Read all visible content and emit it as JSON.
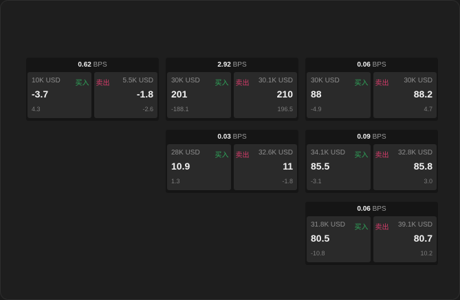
{
  "labels": {
    "unit": "BPS",
    "buy": "买入",
    "sell": "卖出"
  },
  "colors": {
    "buy": "#2fa55a",
    "sell": "#d43c6a"
  },
  "widgets": [
    {
      "spread": "0.62",
      "buy": {
        "qty": "10K USD",
        "price": "-3.7",
        "change": "4.3"
      },
      "sell": {
        "qty": "5.5K USD",
        "price": "-1.8",
        "change": "-2.6"
      }
    },
    {
      "spread": "2.92",
      "buy": {
        "qty": "30K USD",
        "price": "201",
        "change": "-188.1"
      },
      "sell": {
        "qty": "30.1K USD",
        "price": "210",
        "change": "196.5"
      }
    },
    {
      "spread": "0.06",
      "buy": {
        "qty": "30K USD",
        "price": "88",
        "change": "-4.9"
      },
      "sell": {
        "qty": "30K USD",
        "price": "88.2",
        "change": "4.7"
      }
    },
    {
      "spread": "0.03",
      "buy": {
        "qty": "28K USD",
        "price": "10.9",
        "change": "1.3"
      },
      "sell": {
        "qty": "32.6K USD",
        "price": "11",
        "change": "-1.8"
      }
    },
    {
      "spread": "0.09",
      "buy": {
        "qty": "34.1K USD",
        "price": "85.5",
        "change": "-3.1"
      },
      "sell": {
        "qty": "32.8K USD",
        "price": "85.8",
        "change": "3.0"
      }
    },
    {
      "spread": "0.06",
      "buy": {
        "qty": "31.8K USD",
        "price": "80.5",
        "change": "-10.8"
      },
      "sell": {
        "qty": "39.1K USD",
        "price": "80.7",
        "change": "10.2"
      }
    }
  ]
}
